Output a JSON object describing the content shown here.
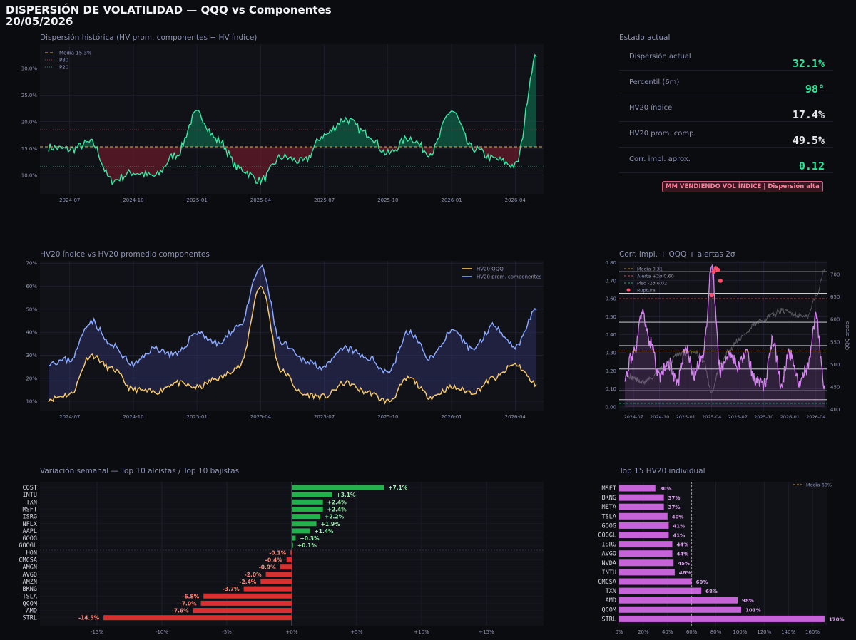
{
  "header": {
    "title": "DISPERSIÓN DE VOLATILIDAD  —  QQQ vs Componentes",
    "date": "20/05/2026"
  },
  "panels": {
    "dispersion": "Dispersión histórica  (HV prom. componentes − HV índice)",
    "status": "Estado actual",
    "hv": "HV20 índice vs HV20 promedio componentes",
    "corr": "Corr. impl. + QQQ + alertas 2σ",
    "weekly": "Variación semanal  —  Top 10 alcistas / Top 10 bajistas",
    "top15": "Top 15 HV20 individual"
  },
  "status": {
    "rows": [
      {
        "label": "Dispersión actual",
        "value": "32.1%",
        "color": "#2ee59a"
      },
      {
        "label": "Percentil (6m)",
        "value": "98°",
        "color": "#2ee59a"
      },
      {
        "label": "HV20 índice",
        "value": "17.4%",
        "color": "#e6e7ef"
      },
      {
        "label": "HV20 prom. comp.",
        "value": "49.5%",
        "color": "#e6e7ef"
      },
      {
        "label": "Corr. impl. aprox.",
        "value": "0.12",
        "color": "#2ee59a"
      }
    ],
    "badge": "MM VENDIENDO VOL ÍNDICE  |  Dispersión alta"
  },
  "chart_data": [
    {
      "id": "dispersion",
      "type": "area",
      "x_range": [
        "2024-06",
        "2026-05"
      ],
      "x_ticks": [
        "2024-07",
        "2024-10",
        "2025-01",
        "2025-04",
        "2025-07",
        "2025-10",
        "2026-01",
        "2026-04"
      ],
      "y_ticks": [
        "10.0%",
        "15.0%",
        "20.0%",
        "25.0%",
        "30.0%"
      ],
      "ylim": [
        6.5,
        34.5
      ],
      "mean": 15.3,
      "p80": 18.5,
      "p20": 11.6,
      "legend": [
        "Media 15.3%",
        "P80",
        "P20"
      ],
      "series": {
        "x": [
          "2024-06",
          "2024-07",
          "2024-08",
          "2024-09",
          "2024-10",
          "2024-11",
          "2024-12",
          "2025-01",
          "2025-02",
          "2025-03",
          "2025-04",
          "2025-05",
          "2025-06",
          "2025-07",
          "2025-08",
          "2025-09",
          "2025-10",
          "2025-11",
          "2025-12",
          "2026-01",
          "2026-02",
          "2026-03",
          "2026-04",
          "2026-05"
        ],
        "values": [
          15.2,
          14.8,
          16.1,
          9.0,
          10.5,
          9.8,
          13.8,
          21.5,
          16.5,
          11.2,
          9.0,
          13.4,
          12.5,
          17.5,
          20.5,
          17.8,
          14.0,
          17.0,
          14.2,
          22.0,
          15.0,
          13.0,
          11.8,
          32.1
        ]
      }
    },
    {
      "id": "hv20",
      "type": "line",
      "x_range": [
        "2024-06",
        "2026-05"
      ],
      "x_ticks": [
        "2024-07",
        "2024-10",
        "2025-01",
        "2025-04",
        "2025-07",
        "2025-10",
        "2026-01",
        "2026-04"
      ],
      "y_ticks": [
        "10%",
        "20%",
        "30%",
        "40%",
        "50%",
        "60%",
        "70%"
      ],
      "ylim": [
        6,
        71
      ],
      "legend": [
        "HV20 QQQ",
        "HV20 prom. componentes"
      ],
      "x": [
        "2024-06",
        "2024-07",
        "2024-08",
        "2024-09",
        "2024-10",
        "2024-11",
        "2024-12",
        "2025-01",
        "2025-02",
        "2025-03",
        "2025-04",
        "2025-05",
        "2025-06",
        "2025-07",
        "2025-08",
        "2025-09",
        "2025-10",
        "2025-11",
        "2025-12",
        "2026-01",
        "2026-02",
        "2026-03",
        "2026-04",
        "2026-05"
      ],
      "series": [
        {
          "name": "HV20 QQQ",
          "color": "#f6c969",
          "values": [
            11,
            13,
            30,
            24,
            15,
            14,
            18,
            16,
            20,
            25,
            60,
            23,
            13,
            12,
            18,
            14,
            10,
            20,
            12,
            16,
            14,
            20,
            26,
            17.4
          ]
        },
        {
          "name": "HV20 prom. componentes",
          "color": "#8aa8ff",
          "values": [
            27,
            28,
            45,
            34,
            26,
            33,
            30,
            40,
            35,
            43,
            68,
            35,
            28,
            25,
            33,
            29,
            23,
            40,
            29,
            40,
            33,
            43,
            34,
            49.5
          ]
        }
      ]
    },
    {
      "id": "corr",
      "type": "line",
      "x_range": [
        "2024-06",
        "2026-05"
      ],
      "x_ticks": [
        "2024-07",
        "2024-10",
        "2025-01",
        "2025-04",
        "2025-07",
        "2025-10",
        "2026-01",
        "2026-04"
      ],
      "y_ticks": [
        "0.00",
        "0.10",
        "0.20",
        "0.30",
        "0.40",
        "0.50",
        "0.60",
        "0.70",
        "0.80"
      ],
      "ylim": [
        -0.02,
        0.81
      ],
      "y2_ticks": [
        "400",
        "450",
        "500",
        "550",
        "600",
        "650",
        "700"
      ],
      "y2lim": [
        398,
        730
      ],
      "y2label": "QQQ precio",
      "mean": 0.31,
      "upper": 0.6,
      "lower": 0.02,
      "legend": [
        "Media 0.31",
        "Alerta +2σ 0.60",
        "Piso -2σ 0.02",
        "Ruptura"
      ],
      "x": [
        "2024-06",
        "2024-07",
        "2024-08",
        "2024-09",
        "2024-10",
        "2024-11",
        "2024-12",
        "2025-01",
        "2025-02",
        "2025-03",
        "2025-04",
        "2025-05",
        "2025-06",
        "2025-07",
        "2025-08",
        "2025-09",
        "2025-10",
        "2025-11",
        "2025-12",
        "2026-01",
        "2026-02",
        "2026-03",
        "2026-04",
        "2026-05"
      ],
      "corr": [
        0.18,
        0.3,
        0.51,
        0.35,
        0.16,
        0.25,
        0.13,
        0.32,
        0.18,
        0.3,
        0.76,
        0.2,
        0.3,
        0.23,
        0.3,
        0.15,
        0.12,
        0.36,
        0.14,
        0.3,
        0.14,
        0.21,
        0.49,
        0.12
      ],
      "price": [
        480,
        470,
        460,
        470,
        490,
        500,
        520,
        525,
        530,
        510,
        440,
        500,
        530,
        555,
        570,
        590,
        600,
        610,
        620,
        615,
        610,
        605,
        650,
        712
      ],
      "ruptures": [
        [
          "2025-04-01",
          0.62
        ],
        [
          "2025-04-08",
          0.75
        ],
        [
          "2025-04-15",
          0.77
        ],
        [
          "2025-04-22",
          0.76
        ],
        [
          "2025-05-01",
          0.7
        ]
      ],
      "levels": [
        0.04,
        0.09,
        0.21,
        0.34,
        0.47,
        0.63,
        0.75
      ]
    },
    {
      "id": "weekly",
      "type": "bar",
      "orientation": "horizontal",
      "x_ticks": [
        "-15%",
        "-10%",
        "-5%",
        "+0%",
        "+5%",
        "+10%",
        "+15%"
      ],
      "xlim": [
        -18,
        19
      ],
      "categories": [
        "COST",
        "INTU",
        "TXN",
        "MSFT",
        "ISRG",
        "NFLX",
        "AAPL",
        "GOOG",
        "GOOGL",
        "HON",
        "CMCSA",
        "AMGN",
        "AVGO",
        "AMZN",
        "BKNG",
        "TSLA",
        "QCOM",
        "AMD",
        "STRL"
      ],
      "values": [
        7.1,
        3.1,
        2.4,
        2.4,
        2.2,
        1.9,
        1.4,
        0.3,
        0.1,
        -0.1,
        -0.4,
        -0.9,
        -2.0,
        -2.4,
        -3.7,
        -6.8,
        -7.0,
        -7.6,
        -14.5
      ],
      "labels": [
        "+7.1%",
        "+3.1%",
        "+2.4%",
        "+2.4%",
        "+2.2%",
        "+1.9%",
        "+1.4%",
        "+0.3%",
        "+0.1%",
        "-0.1%",
        "-0.4%",
        "-0.9%",
        "-2.0%",
        "-2.4%",
        "-3.7%",
        "-6.8%",
        "-7.0%",
        "-7.6%",
        "-14.5%"
      ]
    },
    {
      "id": "top15",
      "type": "bar",
      "orientation": "horizontal",
      "x_ticks": [
        "0%",
        "20%",
        "40%",
        "60%",
        "80%",
        "100%",
        "120%",
        "140%",
        "160%"
      ],
      "xlim": [
        0,
        178
      ],
      "mean": 60,
      "legend": [
        "Media 60%"
      ],
      "categories": [
        "MSFT",
        "BKNG",
        "META",
        "TSLA",
        "GOOG",
        "GOOGL",
        "ISRG",
        "AVGO",
        "NVDA",
        "INTU",
        "CMCSA",
        "TXN",
        "AMD",
        "QCOM",
        "STRL"
      ],
      "values": [
        30,
        37,
        37,
        40,
        41,
        41,
        44,
        44,
        45,
        46,
        60,
        68,
        98,
        101,
        170
      ],
      "labels": [
        "30%",
        "37%",
        "37%",
        "40%",
        "41%",
        "41%",
        "44%",
        "44%",
        "45%",
        "46%",
        "60%",
        "68%",
        "98%",
        "101%",
        "170%"
      ]
    }
  ]
}
